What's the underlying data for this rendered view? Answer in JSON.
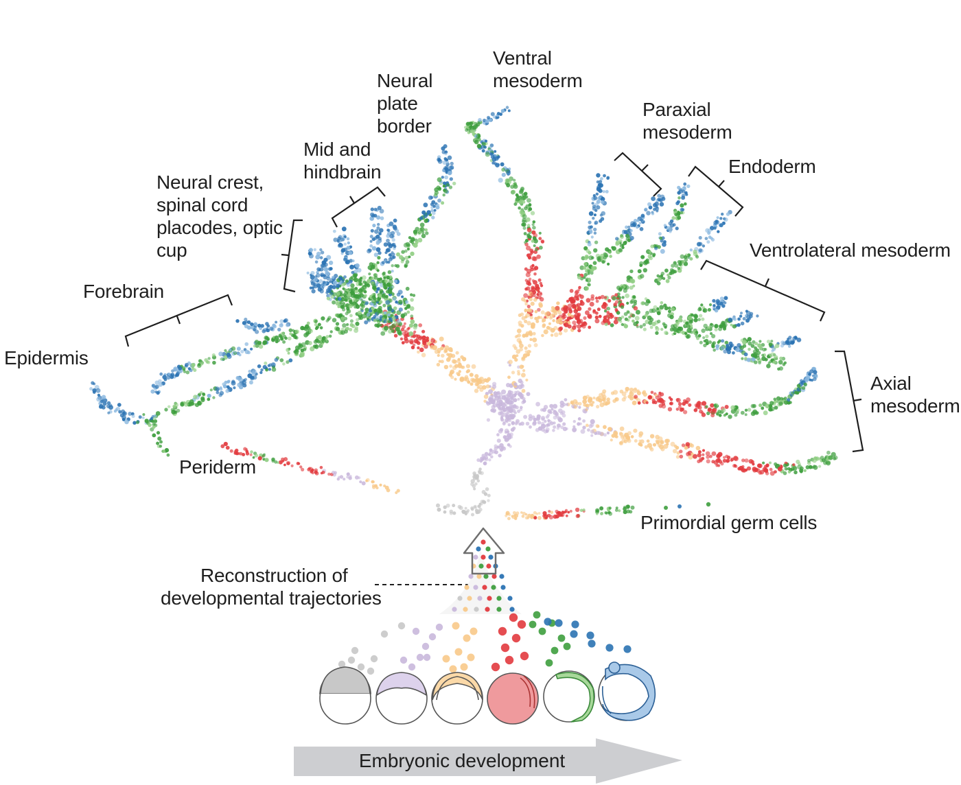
{
  "labels": {
    "ventral_mesoderm": [
      "Ventral",
      "mesoderm"
    ],
    "neural_plate_border": [
      "Neural",
      "plate",
      "border"
    ],
    "paraxial_mesoderm": [
      "Paraxial",
      "mesoderm"
    ],
    "mid_hindbrain": [
      "Mid and",
      "hindbrain"
    ],
    "endoderm": [
      "Endoderm"
    ],
    "neural_crest": [
      "Neural crest,",
      "spinal cord",
      "placodes, optic",
      "cup"
    ],
    "ventrolateral_mesoderm": [
      "Ventrolateral mesoderm"
    ],
    "forebrain": [
      "Forebrain"
    ],
    "epidermis": [
      "Epidermis"
    ],
    "axial_mesoderm": [
      "Axial",
      "mesoderm"
    ],
    "periderm": [
      "Periderm"
    ],
    "primordial_germ_cells": [
      "Primordial germ cells"
    ],
    "reconstruction": [
      "Reconstruction of",
      "developmental trajectories"
    ]
  },
  "development_arrow": {
    "label": "Embryonic development"
  },
  "stages": [
    {
      "name": "stage-1",
      "color": "#c8c8c8"
    },
    {
      "name": "stage-2",
      "color": "#c9b8dc"
    },
    {
      "name": "stage-3",
      "color": "#f8c98a"
    },
    {
      "name": "stage-4",
      "color": "#e23a3e"
    },
    {
      "name": "stage-5",
      "color": "#3e9e3e"
    },
    {
      "name": "stage-6",
      "color": "#2b73b3"
    }
  ]
}
